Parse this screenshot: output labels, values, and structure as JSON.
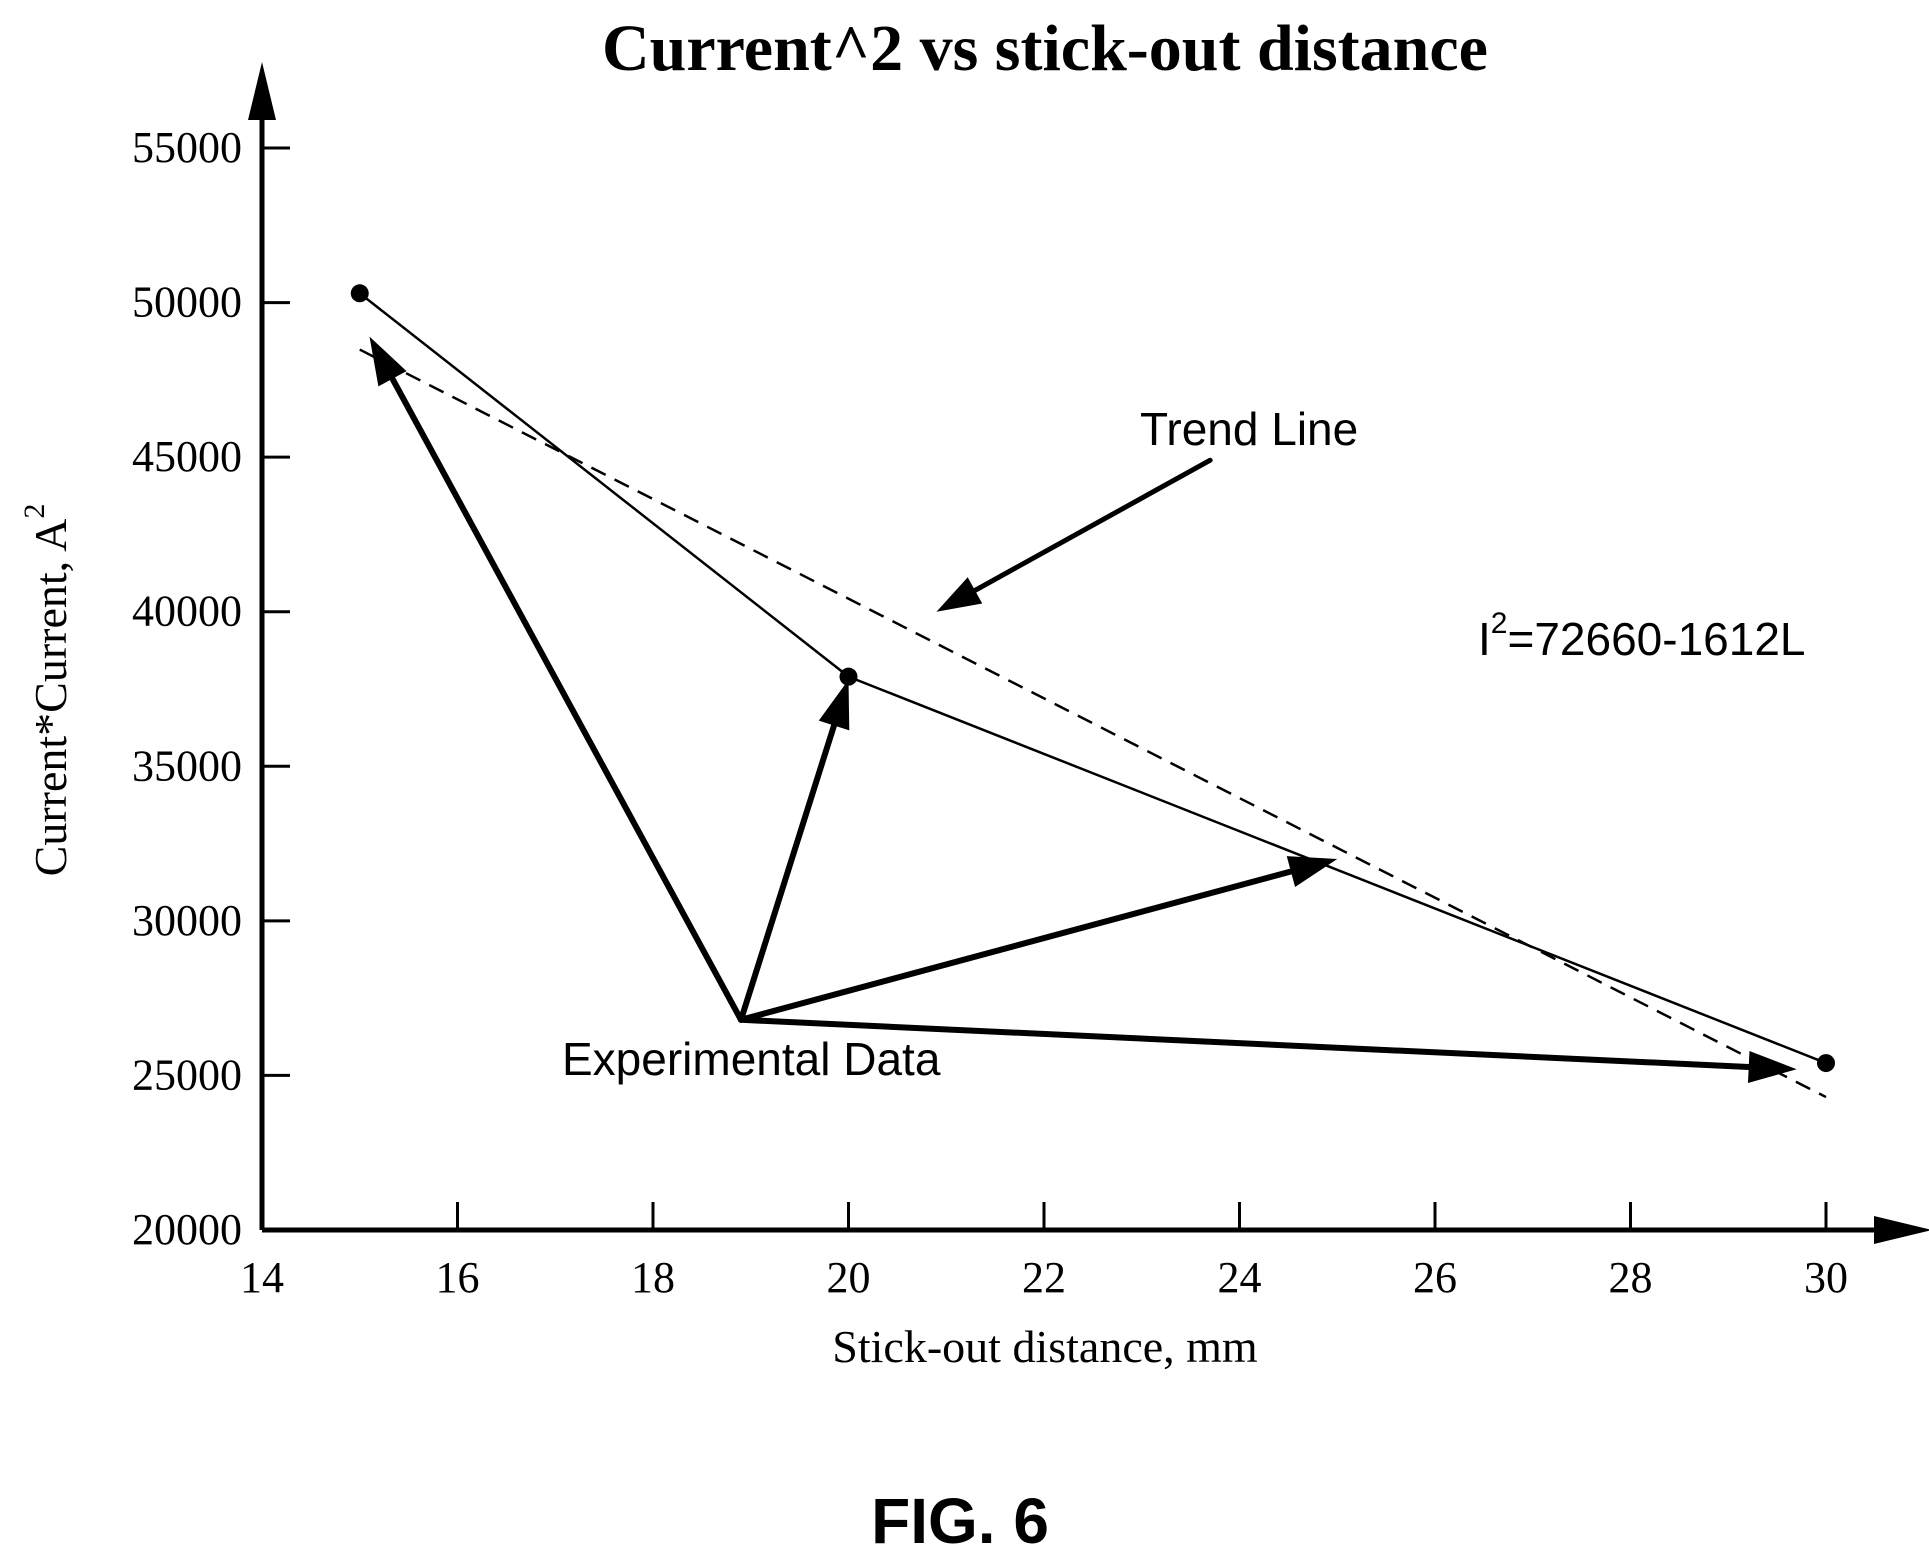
{
  "chart_data": {
    "type": "line",
    "title": "Current^2 vs stick-out distance",
    "xlabel": "Stick-out distance, mm",
    "ylabel": "Current*Current, A",
    "ylabel_superscript": "2",
    "xlim": [
      14,
      30
    ],
    "ylim": [
      20000,
      55000
    ],
    "x_ticks": [
      "14",
      "16",
      "18",
      "20",
      "22",
      "24",
      "26",
      "28",
      "30"
    ],
    "y_ticks": [
      "20000",
      "25000",
      "30000",
      "35000",
      "40000",
      "45000",
      "50000",
      "55000"
    ],
    "grid": false,
    "series": [
      {
        "style": "solid-with-markers",
        "x": [
          15,
          20,
          30
        ],
        "y": [
          50300,
          37900,
          25400
        ]
      },
      {
        "style": "dashed",
        "x": [
          15,
          30
        ],
        "y": [
          48480,
          24300
        ]
      }
    ],
    "annotations": {
      "trend_line_label": "Trend Line",
      "experimental_data_label": "Experimental Data",
      "equation_prefix": "I",
      "equation_sup": "2",
      "equation_rest": "=72660-1612L",
      "arrow_origin": {
        "x": 18.9,
        "y": 26800
      },
      "arrow_targets": [
        {
          "x": 15.1,
          "y": 48900
        },
        {
          "x": 20.0,
          "y": 37800
        },
        {
          "x": 25.0,
          "y": 32000
        },
        {
          "x": 29.7,
          "y": 25200
        }
      ],
      "trend_arrow": {
        "from": {
          "x": 23.7,
          "y": 44900
        },
        "to": {
          "x": 20.9,
          "y": 40000
        }
      }
    }
  },
  "figure_caption": "FIG. 6",
  "colors": {
    "ink": "#000000",
    "background": "#ffffff"
  }
}
